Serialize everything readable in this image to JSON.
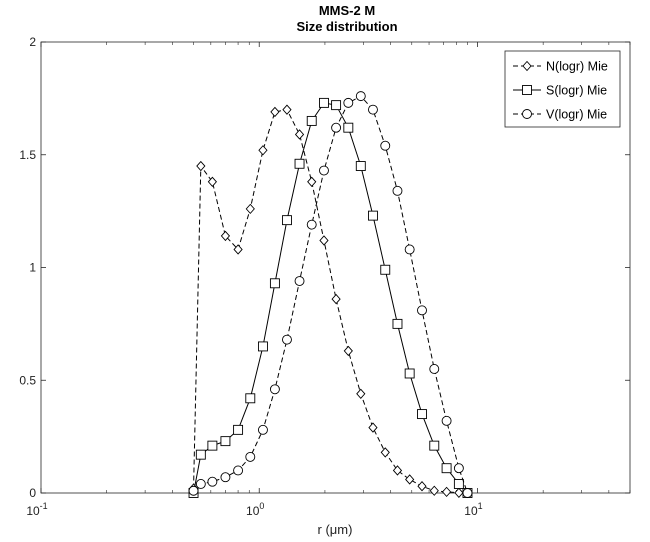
{
  "chart_data": {
    "type": "line",
    "title": "MMS-2 M",
    "subtitle": "Size distribution",
    "xlabel": "r (μm)",
    "ylabel": "",
    "xscale": "log",
    "xlim": [
      0.1,
      50
    ],
    "ylim": [
      0,
      2
    ],
    "x_ticks": [
      {
        "value": 0.1,
        "base": "10",
        "exp": "-1"
      },
      {
        "value": 1,
        "base": "10",
        "exp": "0"
      },
      {
        "value": 10,
        "base": "10",
        "exp": "1"
      }
    ],
    "y_ticks": [
      "0",
      "0.5",
      "1",
      "1.5",
      "2"
    ],
    "legend_position": "top-right",
    "series": [
      {
        "name": "N(logr) Mie",
        "marker": "diamond",
        "line": "dashed",
        "color": "#000000",
        "points": [
          [
            0.5,
            0.02
          ],
          [
            0.54,
            1.45
          ],
          [
            0.61,
            1.38
          ],
          [
            0.7,
            1.14
          ],
          [
            0.8,
            1.08
          ],
          [
            0.91,
            1.26
          ],
          [
            1.04,
            1.52
          ],
          [
            1.18,
            1.69
          ],
          [
            1.34,
            1.7
          ],
          [
            1.53,
            1.59
          ],
          [
            1.74,
            1.38
          ],
          [
            1.98,
            1.12
          ],
          [
            2.25,
            0.86
          ],
          [
            2.56,
            0.63
          ],
          [
            2.92,
            0.44
          ],
          [
            3.32,
            0.29
          ],
          [
            3.78,
            0.18
          ],
          [
            4.3,
            0.1
          ],
          [
            4.89,
            0.06
          ],
          [
            5.57,
            0.03
          ],
          [
            6.34,
            0.01
          ],
          [
            7.22,
            0.005
          ],
          [
            8.22,
            0.001
          ],
          [
            9.0,
            0.0
          ]
        ]
      },
      {
        "name": "S(logr) Mie",
        "marker": "square",
        "line": "solid",
        "color": "#000000",
        "points": [
          [
            0.5,
            0.0
          ],
          [
            0.54,
            0.17
          ],
          [
            0.61,
            0.21
          ],
          [
            0.7,
            0.23
          ],
          [
            0.8,
            0.28
          ],
          [
            0.91,
            0.42
          ],
          [
            1.04,
            0.65
          ],
          [
            1.18,
            0.93
          ],
          [
            1.34,
            1.21
          ],
          [
            1.53,
            1.46
          ],
          [
            1.74,
            1.65
          ],
          [
            1.98,
            1.73
          ],
          [
            2.25,
            1.72
          ],
          [
            2.56,
            1.62
          ],
          [
            2.92,
            1.45
          ],
          [
            3.32,
            1.23
          ],
          [
            3.78,
            0.99
          ],
          [
            4.3,
            0.75
          ],
          [
            4.89,
            0.53
          ],
          [
            5.57,
            0.35
          ],
          [
            6.34,
            0.21
          ],
          [
            7.22,
            0.11
          ],
          [
            8.22,
            0.04
          ],
          [
            9.0,
            0.0
          ]
        ]
      },
      {
        "name": "V(logr) Mie",
        "marker": "circle",
        "line": "dashed",
        "color": "#000000",
        "points": [
          [
            0.5,
            0.01
          ],
          [
            0.54,
            0.04
          ],
          [
            0.61,
            0.05
          ],
          [
            0.7,
            0.07
          ],
          [
            0.8,
            0.1
          ],
          [
            0.91,
            0.16
          ],
          [
            1.04,
            0.28
          ],
          [
            1.18,
            0.46
          ],
          [
            1.34,
            0.68
          ],
          [
            1.53,
            0.94
          ],
          [
            1.74,
            1.19
          ],
          [
            1.98,
            1.43
          ],
          [
            2.25,
            1.62
          ],
          [
            2.56,
            1.73
          ],
          [
            2.92,
            1.76
          ],
          [
            3.32,
            1.7
          ],
          [
            3.78,
            1.54
          ],
          [
            4.3,
            1.34
          ],
          [
            4.89,
            1.08
          ],
          [
            5.57,
            0.81
          ],
          [
            6.34,
            0.55
          ],
          [
            7.22,
            0.32
          ],
          [
            8.22,
            0.11
          ],
          [
            9.0,
            0.0
          ]
        ]
      }
    ]
  }
}
